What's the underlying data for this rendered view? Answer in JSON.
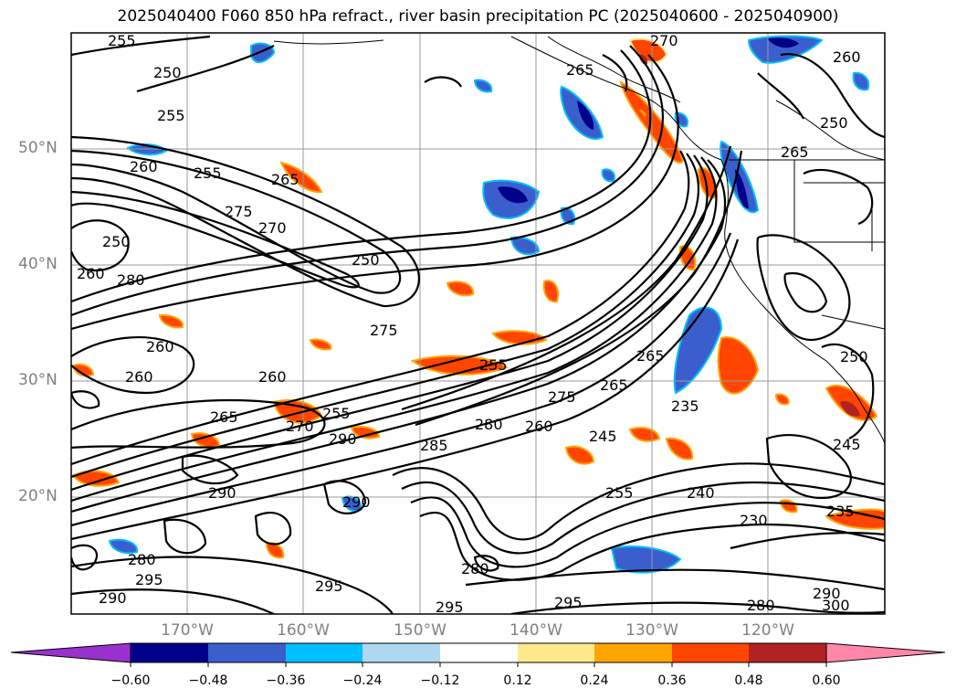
{
  "title": "2025040400 F060 850 hPa refract., river basin precipitation PC (2025040600 - 2025040900)",
  "lat_labels": [
    "50°N",
    "40°N",
    "30°N",
    "20°N"
  ],
  "lon_labels": [
    "170°W",
    "160°W",
    "150°W",
    "140°W",
    "130°W",
    "120°W"
  ],
  "colorbar": {
    "colors": [
      "#9932cc",
      "#00008b",
      "#3a5fcd",
      "#00bfff",
      "#add8f0",
      "#ffffff",
      "#ffe98a",
      "#ffa500",
      "#ff4500",
      "#b22222",
      "#ff88aa"
    ],
    "tick_labels": [
      "−0.60",
      "−0.48",
      "−0.36",
      "−0.24",
      "−0.12",
      "0.12",
      "0.24",
      "0.36",
      "0.48",
      "0.60"
    ]
  },
  "contour_labels": [
    "255",
    "250",
    "255",
    "260",
    "255",
    "265",
    "275",
    "270",
    "250",
    "250",
    "260",
    "280",
    "260",
    "275",
    "255",
    "290",
    "265",
    "260",
    "260",
    "270",
    "255",
    "280",
    "285",
    "260",
    "275",
    "265",
    "245",
    "235",
    "255",
    "240",
    "230",
    "235",
    "245",
    "250",
    "250",
    "265",
    "260",
    "265",
    "270",
    "290",
    "295",
    "280",
    "290",
    "295",
    "290",
    "295",
    "295",
    "300",
    "290",
    "280",
    "280",
    "265"
  ]
}
